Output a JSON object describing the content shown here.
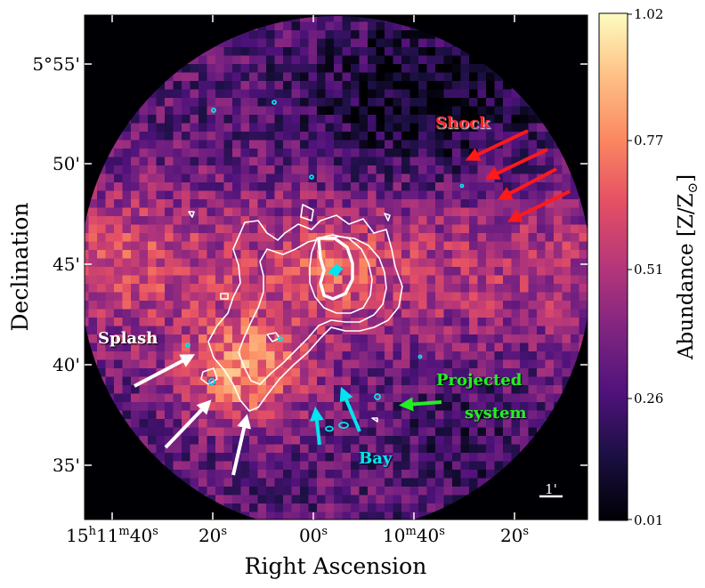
{
  "figure": {
    "x_axis_label": "Right Ascension",
    "y_axis_label": "Declination",
    "x_ticks": [
      {
        "h": "15",
        "h_unit": "h",
        "m": "11",
        "m_unit": "m",
        "s": "40",
        "s_unit": "s"
      },
      {
        "s": "20",
        "s_unit": "s"
      },
      {
        "s": "00",
        "s_unit": "s"
      },
      {
        "m": "10",
        "m_unit": "m",
        "s": "40",
        "s_unit": "s"
      },
      {
        "s": "20",
        "s_unit": "s"
      }
    ],
    "y_ticks": [
      "5°55'",
      "50'",
      "45'",
      "40'",
      "35'"
    ],
    "scale_bar_label": "1'",
    "colorbar": {
      "label": "Abundance [Z/Z",
      "label_sub": "⊙",
      "label_end": "]",
      "ticks": [
        "1.02",
        "0.77",
        "0.51",
        "0.26",
        "0.01"
      ],
      "range": [
        0.01,
        1.02
      ],
      "colormap": "magma"
    },
    "annotations": {
      "shock": {
        "text": "Shock",
        "color": "#ff2020"
      },
      "splash": {
        "text": "Splash",
        "color": "#ffffff"
      },
      "projected_line1": {
        "text": "Projected",
        "color": "#22ee22"
      },
      "projected_line2": {
        "text": "system",
        "color": "#22ee22"
      },
      "bay": {
        "text": "Bay",
        "color": "#00e5ee"
      }
    }
  }
}
